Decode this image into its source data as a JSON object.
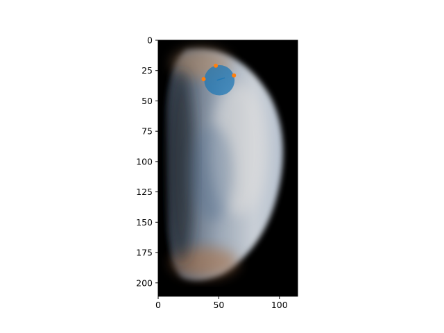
{
  "chart_data": {
    "type": "image",
    "title": "",
    "xlabel": "",
    "ylabel": "",
    "xlim": [
      0,
      115
    ],
    "ylim": [
      211,
      0
    ],
    "x_ticks": [
      0,
      50,
      100
    ],
    "y_ticks": [
      0,
      25,
      50,
      75,
      100,
      125,
      150,
      175,
      200
    ],
    "image": {
      "subject": "half-illuminated planet disk (Venus)",
      "extent_x": [
        0,
        115
      ],
      "extent_y": [
        0,
        211
      ]
    },
    "overlays": [
      {
        "type": "circle",
        "center": [
          50.5,
          33
        ],
        "radius": 12.5,
        "fill": "#1f77b4",
        "alpha": 0.75
      },
      {
        "type": "line",
        "points": [
          [
            48.5,
            33
          ],
          [
            55,
            31
          ]
        ],
        "color": "#1f77b4"
      },
      {
        "type": "scatter",
        "color": "#ff7f0e",
        "points": [
          [
            47.5,
            21
          ],
          [
            62.5,
            29
          ],
          [
            37.5,
            32
          ]
        ]
      }
    ]
  },
  "colors": {
    "background": "#000000",
    "circle": "#1f77b4",
    "points": "#ff7f0e"
  }
}
